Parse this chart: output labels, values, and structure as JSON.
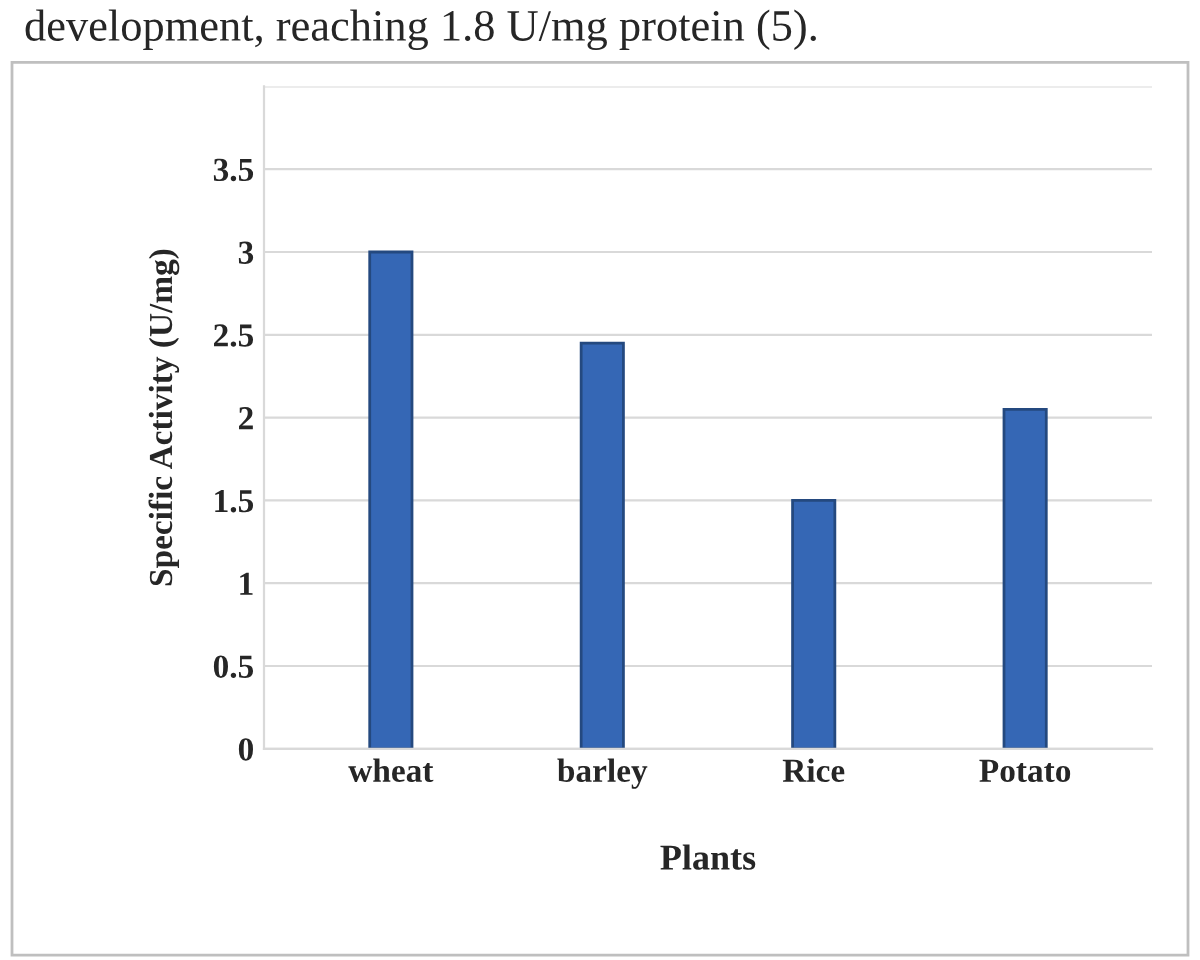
{
  "chart_data": {
    "type": "bar",
    "categories": [
      "wheat",
      "barley",
      "Rice",
      "Potato"
    ],
    "values": [
      3.0,
      2.45,
      1.5,
      2.05
    ],
    "color": "#3567b5",
    "xlabel": "Plants",
    "ylabel": "Specific Activity (U/mg)",
    "ylim": [
      0,
      4
    ],
    "yticks": [
      0,
      0.5,
      1,
      1.5,
      2,
      2.5,
      3,
      3.5,
      {
        "value": 4,
        "label": null
      }
    ],
    "grid": "y",
    "annotations": [
      "development, reaching 1.8 U/mg protein (5)."
    ]
  }
}
